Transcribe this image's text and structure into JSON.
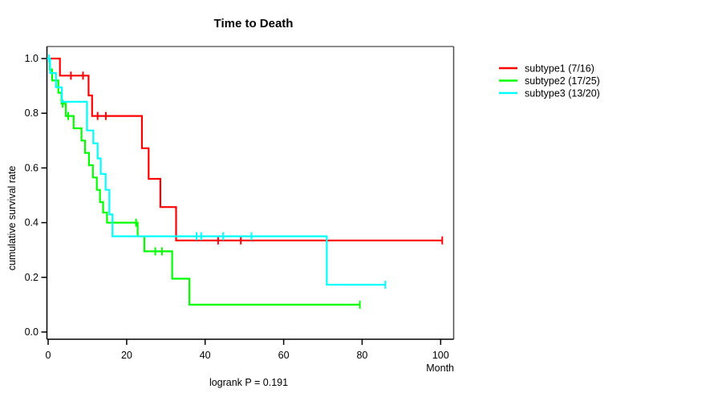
{
  "chart_data": {
    "type": "line",
    "variant": "kaplan-meier-step",
    "title": "Time to Death",
    "xlabel": "Month",
    "ylabel": "cumulative survival rate",
    "annotation": "logrank P = 0.191",
    "xlim": [
      0,
      100
    ],
    "ylim": [
      0.0,
      1.0
    ],
    "xticks": [
      0,
      20,
      40,
      60,
      80,
      100
    ],
    "yticks": [
      1.0,
      0.8,
      0.6,
      0.4,
      0.2,
      0.0
    ],
    "xtick_labels": [
      "0",
      "20",
      "40",
      "60",
      "80",
      "100"
    ],
    "ytick_labels": [
      "1.0",
      "0.8",
      "0.6",
      "0.4",
      "0.2",
      "0.0"
    ],
    "grid": false,
    "legend_position": "right-outside",
    "frame_colors": {
      "top": "#8e8e8e",
      "right": "#4d4d4d",
      "left": "#000000",
      "bottom": "#000000"
    },
    "series": [
      {
        "name": "subtype1 (7/16)",
        "color": "#ff0000",
        "steps": [
          [
            0,
            1.0
          ],
          [
            3.0,
            0.9375
          ],
          [
            10.3,
            0.865
          ],
          [
            11.2,
            0.79
          ],
          [
            23.9,
            0.672
          ],
          [
            25.6,
            0.56
          ],
          [
            28.6,
            0.457
          ],
          [
            32.6,
            0.335
          ],
          [
            100.4,
            0.335
          ]
        ],
        "censors": [
          [
            5.8,
            0.9375
          ],
          [
            8.9,
            0.9375
          ],
          [
            12.6,
            0.79
          ],
          [
            14.7,
            0.79
          ],
          [
            43.3,
            0.335
          ],
          [
            49.1,
            0.335
          ],
          [
            100.4,
            0.335
          ]
        ]
      },
      {
        "name": "subtype2 (17/25)",
        "color": "#00ff00",
        "steps": [
          [
            0,
            1.0
          ],
          [
            0.4,
            0.96
          ],
          [
            1.0,
            0.92
          ],
          [
            2.6,
            0.875
          ],
          [
            3.4,
            0.835
          ],
          [
            4.5,
            0.79
          ],
          [
            6.5,
            0.745
          ],
          [
            8.5,
            0.7
          ],
          [
            9.4,
            0.655
          ],
          [
            10.4,
            0.61
          ],
          [
            11.4,
            0.565
          ],
          [
            12.4,
            0.52
          ],
          [
            13.2,
            0.475
          ],
          [
            14.0,
            0.437
          ],
          [
            15.0,
            0.4
          ],
          [
            22.8,
            0.35
          ],
          [
            24.5,
            0.295
          ],
          [
            31.6,
            0.195
          ],
          [
            36.0,
            0.1
          ],
          [
            79.4,
            0.1
          ]
        ],
        "censors": [
          [
            3.7,
            0.835
          ],
          [
            5.1,
            0.79
          ],
          [
            22.4,
            0.4
          ],
          [
            27.3,
            0.295
          ],
          [
            29.0,
            0.295
          ],
          [
            79.4,
            0.1
          ]
        ]
      },
      {
        "name": "subtype3 (13/20)",
        "color": "#00ffff",
        "steps": [
          [
            0,
            1.0
          ],
          [
            0.5,
            0.947
          ],
          [
            2.0,
            0.895
          ],
          [
            3.5,
            0.842
          ],
          [
            9.9,
            0.737
          ],
          [
            11.5,
            0.69
          ],
          [
            12.6,
            0.635
          ],
          [
            13.4,
            0.578
          ],
          [
            14.65,
            0.52
          ],
          [
            15.6,
            0.43
          ],
          [
            16.4,
            0.35
          ],
          [
            71.0,
            0.173
          ],
          [
            85.9,
            0.173
          ]
        ],
        "censors": [
          [
            0.25,
            1.0
          ],
          [
            37.8,
            0.35
          ],
          [
            39.0,
            0.35
          ],
          [
            44.6,
            0.35
          ],
          [
            51.8,
            0.35
          ],
          [
            85.9,
            0.173
          ]
        ]
      }
    ]
  }
}
